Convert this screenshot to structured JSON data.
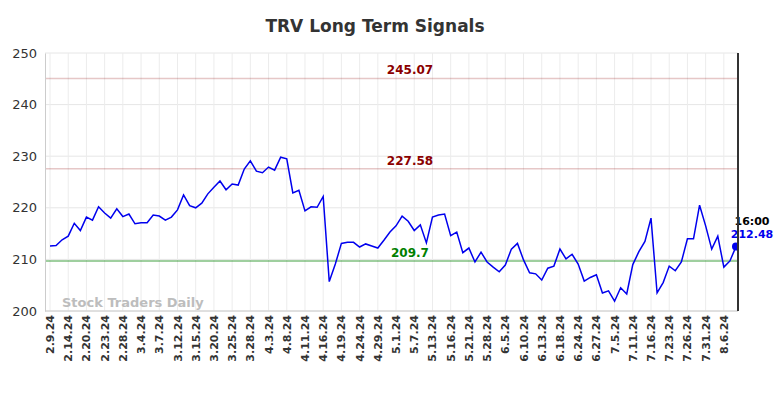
{
  "chart_data": {
    "type": "line",
    "title": "TRV Long Term Signals",
    "watermark": "Stock Traders Daily",
    "time_label": "16:00",
    "categories": [
      "2.9.24",
      null,
      null,
      "2.14.24",
      null,
      null,
      "2.20.24",
      null,
      null,
      "2.23.24",
      null,
      null,
      "2.28.24",
      null,
      null,
      "3.4.24",
      null,
      null,
      "3.7.24",
      null,
      null,
      "3.12.24",
      null,
      null,
      "3.15.24",
      null,
      null,
      "3.20.24",
      null,
      null,
      "3.25.24",
      null,
      null,
      "3.28.24",
      null,
      null,
      "4.3.24",
      null,
      null,
      "4.8.24",
      null,
      null,
      "4.11.24",
      null,
      null,
      "4.16.24",
      null,
      null,
      "4.19.24",
      null,
      null,
      "4.24.24",
      null,
      null,
      "4.29.24",
      null,
      null,
      "5.1.24",
      null,
      null,
      "5.7.24",
      null,
      null,
      "5.13.24",
      null,
      null,
      "5.16.24",
      null,
      null,
      "5.21.24",
      null,
      null,
      "5.28.24",
      null,
      null,
      "6.5.24",
      null,
      null,
      "6.10.24",
      null,
      null,
      "6.13.24",
      null,
      null,
      "6.18.24",
      null,
      null,
      "6.24.24",
      null,
      null,
      "6.27.24",
      null,
      null,
      "7.5.24",
      null,
      null,
      "7.11.24",
      null,
      null,
      "7.16.24",
      null,
      null,
      "7.23.24",
      null,
      null,
      "7.26.24",
      null,
      null,
      "7.31.24",
      null,
      null,
      "8.6.24",
      null,
      null
    ],
    "series": [
      {
        "name": "TRV",
        "color": "#0000ee",
        "marker": "last",
        "values": [
          212.6,
          212.7,
          213.8,
          214.5,
          217.0,
          215.6,
          218.2,
          217.6,
          220.2,
          219.0,
          218.0,
          219.8,
          218.3,
          218.8,
          216.9,
          217.1,
          217.1,
          218.6,
          218.4,
          217.6,
          218.2,
          219.6,
          222.5,
          220.4,
          220.0,
          220.9,
          222.7,
          224.0,
          225.2,
          223.5,
          224.6,
          224.4,
          227.5,
          229.1,
          227.1,
          226.8,
          227.9,
          227.3,
          229.8,
          229.5,
          222.9,
          223.4,
          219.4,
          220.2,
          220.1,
          222.2,
          205.7,
          209.1,
          213.1,
          213.3,
          213.3,
          212.4,
          213.0,
          212.6,
          212.2,
          213.7,
          215.3,
          216.5,
          218.4,
          217.4,
          215.6,
          216.7,
          213.2,
          218.2,
          218.6,
          218.8,
          214.6,
          215.3,
          211.3,
          212.2,
          209.5,
          211.4,
          209.5,
          208.5,
          207.6,
          208.9,
          212.0,
          213.1,
          209.9,
          207.4,
          207.2,
          206.0,
          208.3,
          208.7,
          212.0,
          210.1,
          211.0,
          209.1,
          205.8,
          206.5,
          207.0,
          203.5,
          203.9,
          201.9,
          204.5,
          203.3,
          209.0,
          211.5,
          213.5,
          218.0,
          203.5,
          205.5,
          208.7,
          207.8,
          209.5,
          214.0,
          214.0,
          220.5,
          216.5,
          212.0,
          214.5,
          208.5,
          209.7,
          212.48
        ]
      }
    ],
    "reference_lines": [
      {
        "value": 245.07,
        "color": "#8b0000"
      },
      {
        "value": 227.58,
        "color": "#8b0000"
      },
      {
        "value": 209.7,
        "color": "#008000"
      }
    ],
    "ylim": [
      200,
      250
    ],
    "yticks": [
      200,
      210,
      220,
      230,
      240,
      250
    ],
    "grid": true
  }
}
